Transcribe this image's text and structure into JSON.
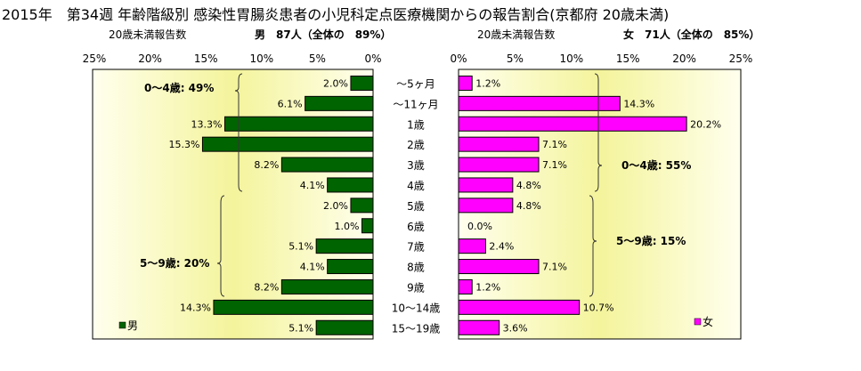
{
  "title": "2015年　第34週 年齢階級別 感染性胃腸炎患者の小児科定点医療機関からの報告割合(京都府 20歳未満)",
  "colors": {
    "male": "#006400",
    "female": "#ff00ff",
    "bar_border": "#000000",
    "plot_edge": "#ffffcc",
    "plot_center": "#f5f5a0"
  },
  "chart_data": [
    {
      "type": "bar",
      "orientation": "horizontal",
      "direction": "right-to-left",
      "header_left": "20歳未満報告数",
      "header_right": "男　87人（全体の　89%）",
      "x_ticks": [
        "25%",
        "20%",
        "15%",
        "10%",
        "5%",
        "0%"
      ],
      "xlim": [
        0,
        25
      ],
      "categories": [
        "～5ヶ月",
        "～11ヶ月",
        "1歳",
        "2歳",
        "3歳",
        "4歳",
        "5歳",
        "6歳",
        "7歳",
        "8歳",
        "9歳",
        "10～14歳",
        "15～19歳"
      ],
      "series": [
        {
          "name": "男",
          "values": [
            2.0,
            6.1,
            13.3,
            15.3,
            8.2,
            4.1,
            2.0,
            1.0,
            5.1,
            4.1,
            8.2,
            14.3,
            5.1
          ],
          "labels": [
            "2.0%",
            "6.1%",
            "13.3%",
            "15.3%",
            "8.2%",
            "4.1%",
            "2.0%",
            "1.0%",
            "5.1%",
            "4.1%",
            "8.2%",
            "14.3%",
            "5.1%"
          ]
        }
      ],
      "annotations": [
        "0～4歳: 49%",
        "5～9歳: 20%"
      ],
      "legend": "bottom-left"
    },
    {
      "type": "bar",
      "orientation": "horizontal",
      "direction": "left-to-right",
      "header_left": "20歳未満報告数",
      "header_right": "女　71人（全体の　85%）",
      "x_ticks": [
        "0%",
        "5%",
        "10%",
        "15%",
        "20%",
        "25%"
      ],
      "xlim": [
        0,
        25
      ],
      "categories": [
        "～5ヶ月",
        "～11ヶ月",
        "1歳",
        "2歳",
        "3歳",
        "4歳",
        "5歳",
        "6歳",
        "7歳",
        "8歳",
        "9歳",
        "10～14歳",
        "15～19歳"
      ],
      "series": [
        {
          "name": "女",
          "values": [
            1.2,
            14.3,
            20.2,
            7.1,
            7.1,
            4.8,
            4.8,
            0.0,
            2.4,
            7.1,
            1.2,
            10.7,
            3.6
          ],
          "labels": [
            "1.2%",
            "14.3%",
            "20.2%",
            "7.1%",
            "7.1%",
            "4.8%",
            "4.8%",
            "0.0%",
            "2.4%",
            "7.1%",
            "1.2%",
            "10.7%",
            "3.6%"
          ]
        }
      ],
      "annotations": [
        "0～4歳: 55%",
        "5～9歳: 15%"
      ],
      "legend": "bottom-right"
    }
  ]
}
